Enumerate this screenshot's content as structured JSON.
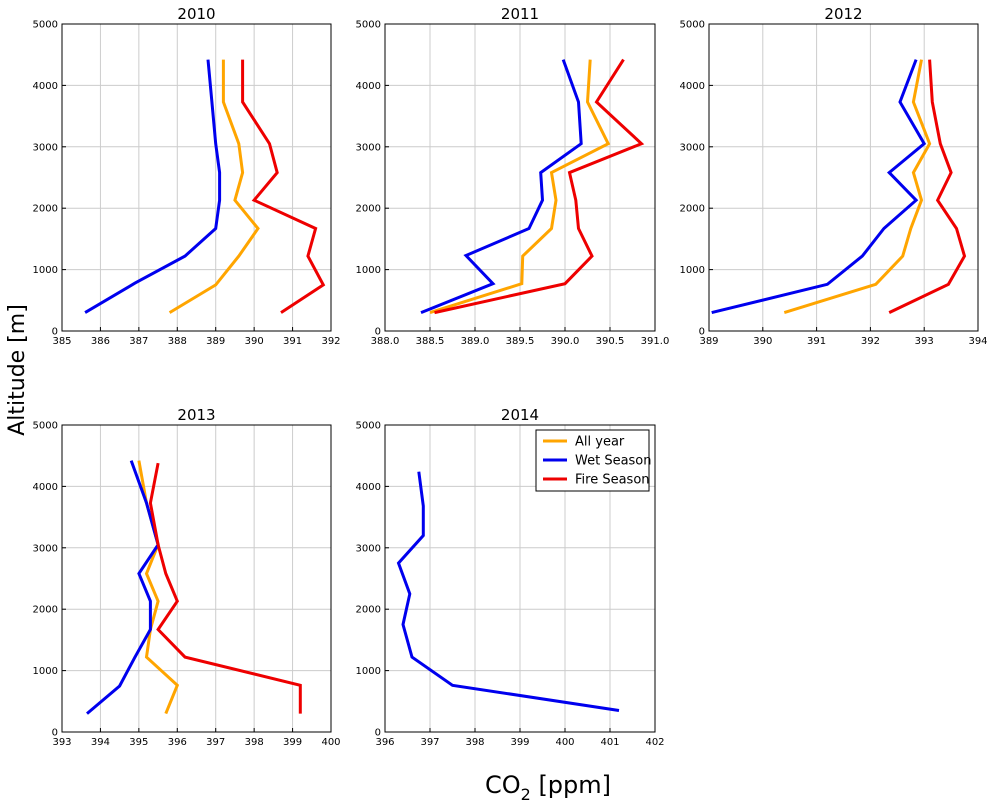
{
  "figure": {
    "ylabel": "Altitude [m]",
    "xlabel_main": "CO",
    "xlabel_sub": "2",
    "xlabel_unit": " [ppm]"
  },
  "colors": {
    "All year": "#FFA500",
    "Wet Season": "#0000EE",
    "Fire Season": "#EE0000",
    "grid": "#cccccc"
  },
  "legend": [
    "All year",
    "Wet Season",
    "Fire Season"
  ],
  "chart_data": [
    {
      "type": "line",
      "title": "2010",
      "xlim": [
        385,
        392
      ],
      "ylim": [
        0,
        5000
      ],
      "xticks": [
        "385",
        "386",
        "387",
        "388",
        "389",
        "390",
        "391",
        "392"
      ],
      "yticks": [
        "0",
        "1000",
        "2000",
        "3000",
        "4000",
        "5000"
      ],
      "grid": true,
      "series": [
        {
          "name": "All year",
          "points": [
            [
              387.8,
              300
            ],
            [
              389.0,
              750
            ],
            [
              389.6,
              1220
            ],
            [
              390.1,
              1670
            ],
            [
              389.5,
              2130
            ],
            [
              389.7,
              2580
            ],
            [
              389.6,
              3050
            ],
            [
              389.2,
              3730
            ],
            [
              389.2,
              4420
            ]
          ]
        },
        {
          "name": "Wet Season",
          "points": [
            [
              385.6,
              300
            ],
            [
              386.9,
              780
            ],
            [
              388.2,
              1220
            ],
            [
              389.0,
              1670
            ],
            [
              389.1,
              2130
            ],
            [
              389.1,
              2580
            ],
            [
              389.0,
              3050
            ],
            [
              388.9,
              3730
            ],
            [
              388.8,
              4420
            ]
          ]
        },
        {
          "name": "Fire Season",
          "points": [
            [
              390.7,
              300
            ],
            [
              391.8,
              750
            ],
            [
              391.4,
              1220
            ],
            [
              391.6,
              1670
            ],
            [
              390.0,
              2130
            ],
            [
              390.6,
              2580
            ],
            [
              390.4,
              3050
            ],
            [
              389.7,
              3730
            ],
            [
              389.7,
              4420
            ]
          ]
        }
      ]
    },
    {
      "type": "line",
      "title": "2011",
      "xlim": [
        388.0,
        391.0
      ],
      "ylim": [
        0,
        5000
      ],
      "xticks": [
        "388.0",
        "388.5",
        "389.0",
        "389.5",
        "390.0",
        "390.5",
        "391.0"
      ],
      "yticks": [
        "0",
        "1000",
        "2000",
        "3000",
        "4000",
        "5000"
      ],
      "grid": true,
      "series": [
        {
          "name": "All year",
          "points": [
            [
              388.5,
              300
            ],
            [
              389.52,
              770
            ],
            [
              389.53,
              1220
            ],
            [
              389.85,
              1670
            ],
            [
              389.9,
              2130
            ],
            [
              389.85,
              2580
            ],
            [
              390.48,
              3050
            ],
            [
              390.25,
              3730
            ],
            [
              390.28,
              4420
            ]
          ]
        },
        {
          "name": "Wet Season",
          "points": [
            [
              388.4,
              300
            ],
            [
              389.2,
              770
            ],
            [
              388.9,
              1230
            ],
            [
              389.6,
              1670
            ],
            [
              389.75,
              2130
            ],
            [
              389.73,
              2580
            ],
            [
              390.18,
              3050
            ],
            [
              390.15,
              3730
            ],
            [
              389.98,
              4420
            ]
          ]
        },
        {
          "name": "Fire Season",
          "points": [
            [
              388.55,
              300
            ],
            [
              390.0,
              770
            ],
            [
              390.3,
              1220
            ],
            [
              390.15,
              1670
            ],
            [
              390.12,
              2130
            ],
            [
              390.05,
              2580
            ],
            [
              390.85,
              3050
            ],
            [
              390.35,
              3730
            ],
            [
              390.65,
              4420
            ]
          ]
        }
      ]
    },
    {
      "type": "line",
      "title": "2012",
      "xlim": [
        389,
        394
      ],
      "ylim": [
        0,
        5000
      ],
      "xticks": [
        "389",
        "390",
        "391",
        "392",
        "393",
        "394"
      ],
      "yticks": [
        "0",
        "1000",
        "2000",
        "3000",
        "4000",
        "5000"
      ],
      "grid": true,
      "series": [
        {
          "name": "All year",
          "points": [
            [
              390.4,
              300
            ],
            [
              392.1,
              760
            ],
            [
              392.6,
              1220
            ],
            [
              392.75,
              1670
            ],
            [
              392.95,
              2130
            ],
            [
              392.8,
              2580
            ],
            [
              393.1,
              3050
            ],
            [
              392.8,
              3730
            ],
            [
              392.95,
              4420
            ]
          ]
        },
        {
          "name": "Wet Season",
          "points": [
            [
              389.05,
              300
            ],
            [
              391.2,
              760
            ],
            [
              391.85,
              1220
            ],
            [
              392.25,
              1670
            ],
            [
              392.85,
              2130
            ],
            [
              392.35,
              2580
            ],
            [
              393.0,
              3050
            ],
            [
              392.55,
              3730
            ],
            [
              392.85,
              4420
            ]
          ]
        },
        {
          "name": "Fire Season",
          "points": [
            [
              392.35,
              300
            ],
            [
              393.45,
              760
            ],
            [
              393.75,
              1220
            ],
            [
              393.6,
              1670
            ],
            [
              393.25,
              2130
            ],
            [
              393.5,
              2580
            ],
            [
              393.3,
              3050
            ],
            [
              393.15,
              3730
            ],
            [
              393.1,
              4420
            ]
          ]
        }
      ]
    },
    {
      "type": "line",
      "title": "2013",
      "xlim": [
        393,
        400
      ],
      "ylim": [
        0,
        5000
      ],
      "xticks": [
        "393",
        "394",
        "395",
        "396",
        "397",
        "398",
        "399",
        "400"
      ],
      "yticks": [
        "0",
        "1000",
        "2000",
        "3000",
        "4000",
        "5000"
      ],
      "grid": true,
      "series": [
        {
          "name": "All year",
          "points": [
            [
              395.7,
              300
            ],
            [
              396.0,
              760
            ],
            [
              395.2,
              1220
            ],
            [
              395.3,
              1670
            ],
            [
              395.5,
              2130
            ],
            [
              395.2,
              2580
            ],
            [
              395.5,
              3050
            ],
            [
              395.2,
              3730
            ],
            [
              395.0,
              4420
            ]
          ]
        },
        {
          "name": "Wet Season",
          "points": [
            [
              393.65,
              300
            ],
            [
              394.5,
              750
            ],
            [
              394.9,
              1220
            ],
            [
              395.3,
              1670
            ],
            [
              395.3,
              2130
            ],
            [
              395.0,
              2580
            ],
            [
              395.5,
              3050
            ],
            [
              395.2,
              3730
            ],
            [
              394.8,
              4420
            ]
          ]
        },
        {
          "name": "Fire Season",
          "points": [
            [
              399.2,
              300
            ],
            [
              399.2,
              760
            ],
            [
              396.2,
              1220
            ],
            [
              395.5,
              1670
            ],
            [
              396.0,
              2130
            ],
            [
              395.7,
              2580
            ],
            [
              395.5,
              3050
            ],
            [
              395.3,
              3730
            ],
            [
              395.5,
              4380
            ]
          ]
        }
      ]
    },
    {
      "type": "line",
      "title": "2014",
      "xlim": [
        396,
        402
      ],
      "ylim": [
        0,
        5000
      ],
      "xticks": [
        "396",
        "397",
        "398",
        "399",
        "400",
        "401",
        "402"
      ],
      "yticks": [
        "0",
        "1000",
        "2000",
        "3000",
        "4000",
        "5000"
      ],
      "grid": true,
      "series": [
        {
          "name": "Wet Season",
          "points": [
            [
              401.2,
              350
            ],
            [
              397.5,
              760
            ],
            [
              396.6,
              1220
            ],
            [
              396.4,
              1750
            ],
            [
              396.55,
              2250
            ],
            [
              396.3,
              2750
            ],
            [
              396.85,
              3200
            ],
            [
              396.85,
              3680
            ],
            [
              396.75,
              4240
            ]
          ]
        }
      ]
    }
  ]
}
